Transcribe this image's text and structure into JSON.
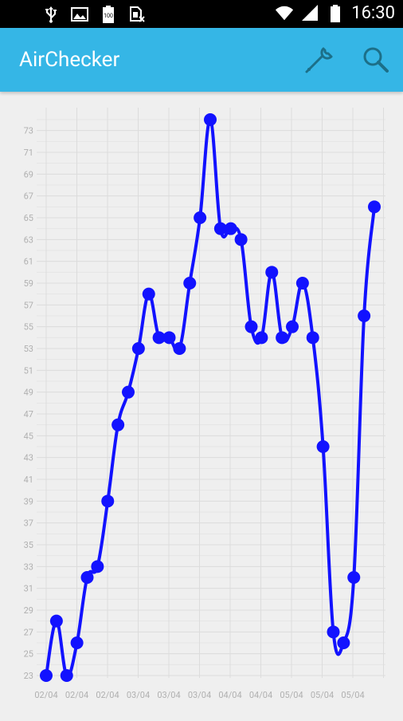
{
  "statusbar": {
    "time": "16:30",
    "icons_left": [
      "usb-icon",
      "image-icon",
      "battery-100-icon",
      "sim-blocked-icon"
    ],
    "icons_right": [
      "wifi-icon",
      "signal-icon",
      "battery-icon"
    ]
  },
  "appbar": {
    "title": "AirChecker",
    "actions": [
      {
        "name": "settings-button",
        "icon": "wrench-icon"
      },
      {
        "name": "search-button",
        "icon": "search-icon"
      }
    ],
    "color": "#35b6e6"
  },
  "chart_data": {
    "type": "line",
    "line_color": "#1212ff",
    "grid": true,
    "yrange": [
      22,
      75
    ],
    "yticks": [
      23,
      25,
      27,
      29,
      31,
      33,
      35,
      37,
      39,
      41,
      43,
      45,
      47,
      49,
      51,
      53,
      55,
      57,
      59,
      61,
      63,
      65,
      67,
      69,
      71,
      73
    ],
    "xtick_labels": [
      "02/04",
      "02/04",
      "02/04",
      "03/04",
      "03/04",
      "03/04",
      "04/04",
      "04/04",
      "05/04",
      "05/04",
      "05/04"
    ],
    "series": [
      {
        "values": [
          23,
          28,
          23,
          26,
          32,
          33,
          39,
          46,
          49,
          53,
          58,
          54,
          54,
          53,
          59,
          65,
          74,
          64,
          64,
          63,
          55,
          54,
          60,
          54,
          55,
          59,
          54,
          44,
          27,
          26,
          32,
          56,
          66
        ]
      }
    ]
  }
}
